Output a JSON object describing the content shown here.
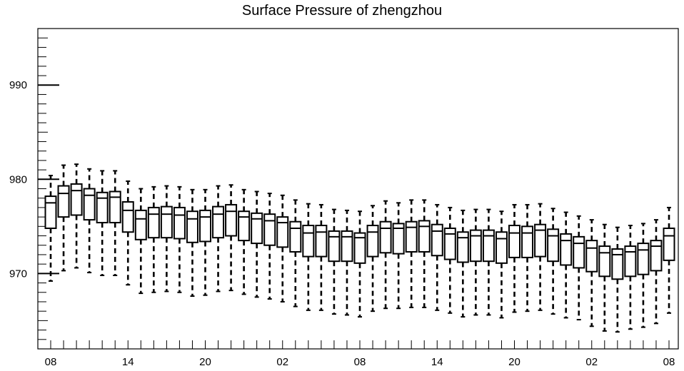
{
  "chart_data": {
    "type": "box",
    "title": "Surface Pressure of zhengzhou",
    "xlabel": "",
    "ylabel": "",
    "ylim": [
      962,
      996
    ],
    "y_ticks": [
      970,
      980,
      990
    ],
    "x_tick_labels": [
      "08",
      "14",
      "20",
      "02",
      "08",
      "14",
      "20",
      "02",
      "08"
    ],
    "x_tick_positions": [
      0,
      6,
      12,
      18,
      24,
      30,
      36,
      42,
      48
    ],
    "grid": false,
    "boxes": [
      {
        "x": 0,
        "whislo": 969.2,
        "q1": 974.8,
        "med": 977.5,
        "q3": 978.2,
        "whishi": 980.4
      },
      {
        "x": 1,
        "whislo": 970.3,
        "q1": 976.0,
        "med": 978.5,
        "q3": 979.3,
        "whishi": 981.5
      },
      {
        "x": 2,
        "whislo": 970.6,
        "q1": 976.2,
        "med": 978.8,
        "q3": 979.5,
        "whishi": 981.6
      },
      {
        "x": 3,
        "whislo": 970.1,
        "q1": 975.7,
        "med": 978.3,
        "q3": 979.0,
        "whishi": 981.1
      },
      {
        "x": 4,
        "whislo": 969.8,
        "q1": 975.4,
        "med": 978.0,
        "q3": 978.6,
        "whishi": 980.9
      },
      {
        "x": 5,
        "whislo": 969.8,
        "q1": 975.4,
        "med": 978.1,
        "q3": 978.7,
        "whishi": 980.9
      },
      {
        "x": 6,
        "whislo": 968.8,
        "q1": 974.4,
        "med": 976.7,
        "q3": 977.6,
        "whishi": 979.8
      },
      {
        "x": 7,
        "whislo": 967.9,
        "q1": 973.6,
        "med": 975.8,
        "q3": 976.7,
        "whishi": 979.0
      },
      {
        "x": 8,
        "whislo": 968.0,
        "q1": 973.8,
        "med": 976.3,
        "q3": 977.0,
        "whishi": 979.2
      },
      {
        "x": 9,
        "whislo": 968.1,
        "q1": 973.8,
        "med": 976.3,
        "q3": 977.1,
        "whishi": 979.3
      },
      {
        "x": 10,
        "whislo": 968.0,
        "q1": 973.7,
        "med": 976.2,
        "q3": 977.0,
        "whishi": 979.2
      },
      {
        "x": 11,
        "whislo": 967.6,
        "q1": 973.3,
        "med": 975.8,
        "q3": 976.6,
        "whishi": 978.9
      },
      {
        "x": 12,
        "whislo": 967.7,
        "q1": 973.4,
        "med": 976.0,
        "q3": 976.7,
        "whishi": 978.9
      },
      {
        "x": 13,
        "whislo": 968.1,
        "q1": 973.8,
        "med": 976.3,
        "q3": 977.1,
        "whishi": 979.3
      },
      {
        "x": 14,
        "whislo": 968.2,
        "q1": 974.0,
        "med": 976.6,
        "q3": 977.3,
        "whishi": 979.4
      },
      {
        "x": 15,
        "whislo": 967.8,
        "q1": 973.5,
        "med": 976.0,
        "q3": 976.6,
        "whishi": 978.9
      },
      {
        "x": 16,
        "whislo": 967.5,
        "q1": 973.2,
        "med": 975.8,
        "q3": 976.4,
        "whishi": 978.7
      },
      {
        "x": 17,
        "whislo": 967.3,
        "q1": 973.0,
        "med": 975.6,
        "q3": 976.3,
        "whishi": 978.5
      },
      {
        "x": 18,
        "whislo": 967.0,
        "q1": 972.8,
        "med": 975.4,
        "q3": 976.0,
        "whishi": 978.3
      },
      {
        "x": 19,
        "whislo": 966.5,
        "q1": 972.3,
        "med": 974.8,
        "q3": 975.5,
        "whishi": 977.8
      },
      {
        "x": 20,
        "whislo": 966.1,
        "q1": 971.8,
        "med": 974.3,
        "q3": 975.1,
        "whishi": 977.4
      },
      {
        "x": 21,
        "whislo": 966.1,
        "q1": 971.8,
        "med": 974.4,
        "q3": 975.1,
        "whishi": 977.3
      },
      {
        "x": 22,
        "whislo": 965.7,
        "q1": 971.3,
        "med": 973.9,
        "q3": 974.5,
        "whishi": 976.8
      },
      {
        "x": 23,
        "whislo": 965.6,
        "q1": 971.3,
        "med": 973.9,
        "q3": 974.5,
        "whishi": 976.7
      },
      {
        "x": 24,
        "whislo": 965.4,
        "q1": 971.1,
        "med": 973.8,
        "q3": 974.3,
        "whishi": 976.6
      },
      {
        "x": 25,
        "whislo": 966.0,
        "q1": 971.8,
        "med": 974.4,
        "q3": 975.1,
        "whishi": 977.2
      },
      {
        "x": 26,
        "whislo": 966.3,
        "q1": 972.2,
        "med": 974.8,
        "q3": 975.5,
        "whishi": 977.7
      },
      {
        "x": 27,
        "whislo": 966.3,
        "q1": 972.1,
        "med": 974.8,
        "q3": 975.3,
        "whishi": 977.5
      },
      {
        "x": 28,
        "whislo": 966.4,
        "q1": 972.3,
        "med": 974.9,
        "q3": 975.5,
        "whishi": 977.8
      },
      {
        "x": 29,
        "whislo": 966.4,
        "q1": 972.3,
        "med": 975.0,
        "q3": 975.6,
        "whishi": 977.8
      },
      {
        "x": 30,
        "whislo": 966.1,
        "q1": 971.9,
        "med": 974.5,
        "q3": 975.2,
        "whishi": 977.3
      },
      {
        "x": 31,
        "whislo": 965.8,
        "q1": 971.5,
        "med": 974.2,
        "q3": 974.8,
        "whishi": 977.0
      },
      {
        "x": 32,
        "whislo": 965.4,
        "q1": 971.2,
        "med": 973.8,
        "q3": 974.4,
        "whishi": 976.7
      },
      {
        "x": 33,
        "whislo": 965.6,
        "q1": 971.3,
        "med": 974.0,
        "q3": 974.6,
        "whishi": 976.8
      },
      {
        "x": 34,
        "whislo": 965.6,
        "q1": 971.3,
        "med": 974.0,
        "q3": 974.6,
        "whishi": 976.8
      },
      {
        "x": 35,
        "whislo": 965.3,
        "q1": 971.1,
        "med": 973.7,
        "q3": 974.4,
        "whishi": 976.6
      },
      {
        "x": 36,
        "whislo": 965.9,
        "q1": 971.7,
        "med": 974.3,
        "q3": 975.1,
        "whishi": 977.3
      },
      {
        "x": 37,
        "whislo": 966.0,
        "q1": 971.7,
        "med": 974.3,
        "q3": 975.0,
        "whishi": 977.3
      },
      {
        "x": 38,
        "whislo": 966.1,
        "q1": 971.8,
        "med": 974.6,
        "q3": 975.2,
        "whishi": 977.4
      },
      {
        "x": 39,
        "whislo": 965.7,
        "q1": 971.3,
        "med": 974.0,
        "q3": 974.7,
        "whishi": 976.9
      },
      {
        "x": 40,
        "whislo": 965.3,
        "q1": 970.9,
        "med": 973.5,
        "q3": 974.2,
        "whishi": 976.5
      },
      {
        "x": 41,
        "whislo": 965.1,
        "q1": 970.6,
        "med": 973.2,
        "q3": 973.9,
        "whishi": 976.1
      },
      {
        "x": 42,
        "whislo": 964.4,
        "q1": 970.2,
        "med": 972.7,
        "q3": 973.5,
        "whishi": 975.7
      },
      {
        "x": 43,
        "whislo": 963.9,
        "q1": 969.7,
        "med": 972.2,
        "q3": 972.9,
        "whishi": 975.2
      },
      {
        "x": 44,
        "whislo": 963.8,
        "q1": 969.4,
        "med": 972.0,
        "q3": 972.6,
        "whishi": 974.9
      },
      {
        "x": 45,
        "whislo": 964.1,
        "q1": 969.7,
        "med": 972.3,
        "q3": 972.9,
        "whishi": 975.1
      },
      {
        "x": 46,
        "whislo": 964.3,
        "q1": 969.9,
        "med": 972.5,
        "q3": 973.2,
        "whishi": 975.3
      },
      {
        "x": 47,
        "whislo": 964.7,
        "q1": 970.3,
        "med": 972.9,
        "q3": 973.5,
        "whishi": 975.7
      },
      {
        "x": 48,
        "whislo": 965.8,
        "q1": 971.4,
        "med": 974.0,
        "q3": 974.8,
        "whishi": 977.0
      }
    ]
  }
}
